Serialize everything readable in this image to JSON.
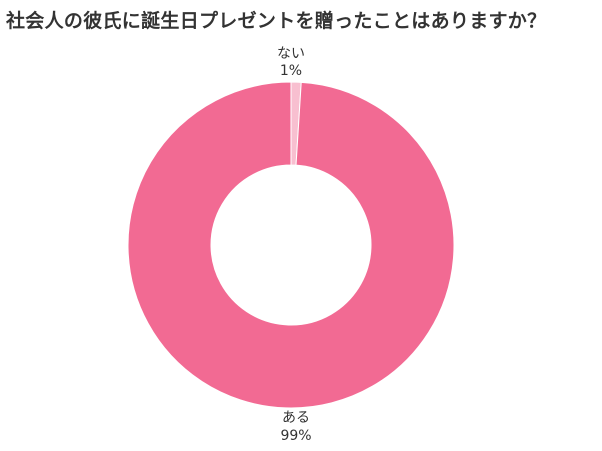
{
  "title": "社会人の彼氏に誕生日プレゼントを贈ったことはありますか？",
  "chart_data": {
    "type": "pie",
    "donut": true,
    "categories": [
      "ない",
      "ある"
    ],
    "values": [
      1,
      99
    ],
    "value_labels": [
      "1%",
      "99%"
    ],
    "colors": [
      "#f8bfd0",
      "#f26a93"
    ]
  }
}
